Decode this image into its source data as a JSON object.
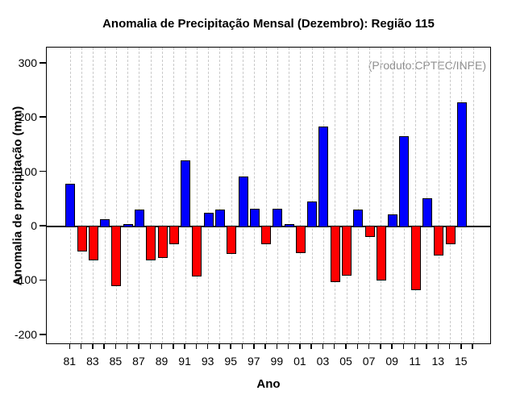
{
  "figure": {
    "title": "Anomalia de Precipitação Mensal (Dezembro): Região 115",
    "annotation": "(Produto:CPTEC/INPE)",
    "x_axis_title": "Ano",
    "y_axis_title": "Anomalia de precipitação (mm)"
  },
  "chart_data": {
    "type": "bar",
    "title": "Anomalia de Precipitação Mensal (Dezembro): Região 115",
    "annotation": "(Produto:CPTEC/INPE)",
    "xlabel": "Ano",
    "ylabel": "Anomalia de precipitação (mm)",
    "categories": [
      "81",
      "82",
      "83",
      "84",
      "85",
      "86",
      "87",
      "88",
      "89",
      "90",
      "91",
      "92",
      "93",
      "94",
      "95",
      "96",
      "97",
      "98",
      "99",
      "00",
      "01",
      "02",
      "03",
      "04",
      "05",
      "06",
      "07",
      "08",
      "09",
      "10",
      "11",
      "12",
      "13",
      "14",
      "15"
    ],
    "values": [
      78,
      -46,
      -63,
      13,
      -110,
      4,
      31,
      -62,
      -58,
      -32,
      122,
      -92,
      25,
      31,
      -50,
      92,
      32,
      -32,
      33,
      4,
      -49,
      46,
      184,
      -102,
      -90,
      31,
      -19,
      -100,
      22,
      166,
      -117,
      52,
      -53,
      -32,
      228
    ],
    "xtick_labels_shown": [
      "81",
      "83",
      "85",
      "87",
      "89",
      "91",
      "93",
      "95",
      "97",
      "99",
      "01",
      "03",
      "05",
      "07",
      "09",
      "11",
      "13",
      "15"
    ],
    "yticks": [
      -200,
      -100,
      0,
      100,
      200,
      300
    ],
    "ylim": [
      -218,
      329
    ],
    "grid": "vertical dashed gridline at every year tick (including unlabeled trailing tick)",
    "legend": "none",
    "colors": {
      "positive_bar": "#0000ff",
      "negative_bar": "#ff0000",
      "bar_border": "#000000",
      "gridline": "#c9c9c9",
      "annotation_text": "#8f8f8f"
    }
  }
}
